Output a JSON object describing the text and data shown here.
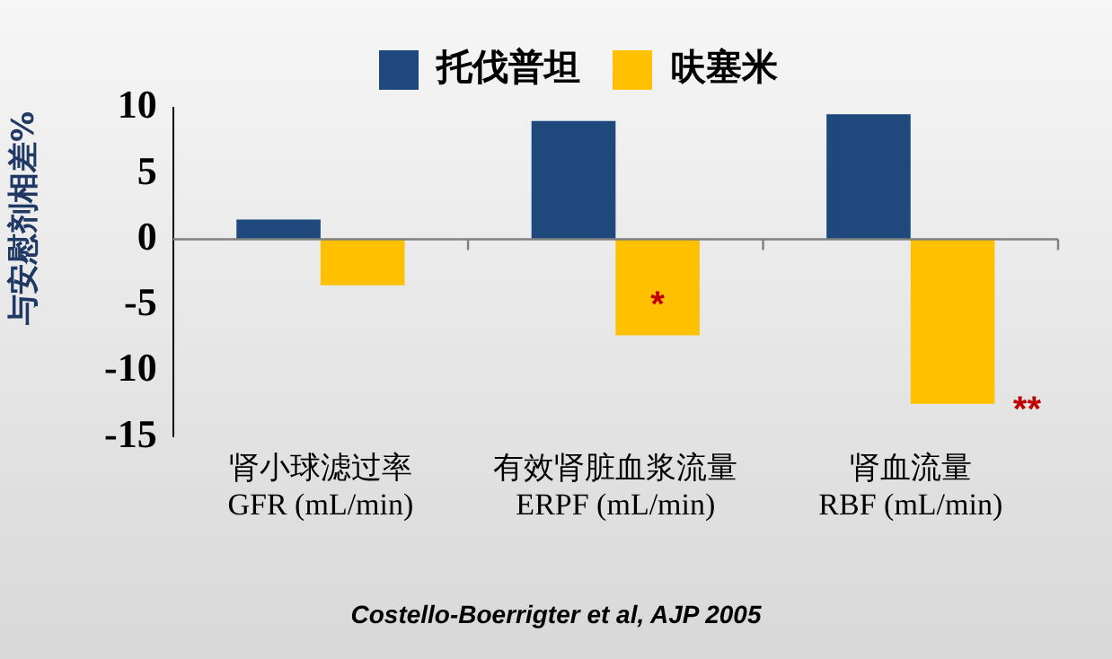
{
  "chart_data": {
    "type": "bar",
    "ylabel": "与安慰剂相差%",
    "legend": "top",
    "categories": [
      "肾小球滤过率\nGFR (mL/min)",
      "有效肾脏血浆流量\nERPF (mL/min)",
      "肾血流量\nRBF (mL/min)"
    ],
    "series": [
      {
        "name": "托伐普坦",
        "color": "#1f497d",
        "values": [
          1.5,
          9.0,
          9.5
        ]
      },
      {
        "name": "呋塞米",
        "color": "#ffc000",
        "values": [
          -3.5,
          -7.3,
          -12.5
        ]
      }
    ],
    "ylim": [
      -15,
      10
    ],
    "yticks": [
      -15,
      -10,
      -5,
      0,
      5,
      10
    ],
    "annotations": [
      {
        "text": "*",
        "x": "有效肾脏血浆流量\nERPF (mL/min)",
        "y": -4.5
      },
      {
        "text": "**",
        "x": "肾血流量\nRBF (mL/min)",
        "y": -12.5
      },
      "Costello-Boerrigter et al, AJP 2005"
    ]
  }
}
